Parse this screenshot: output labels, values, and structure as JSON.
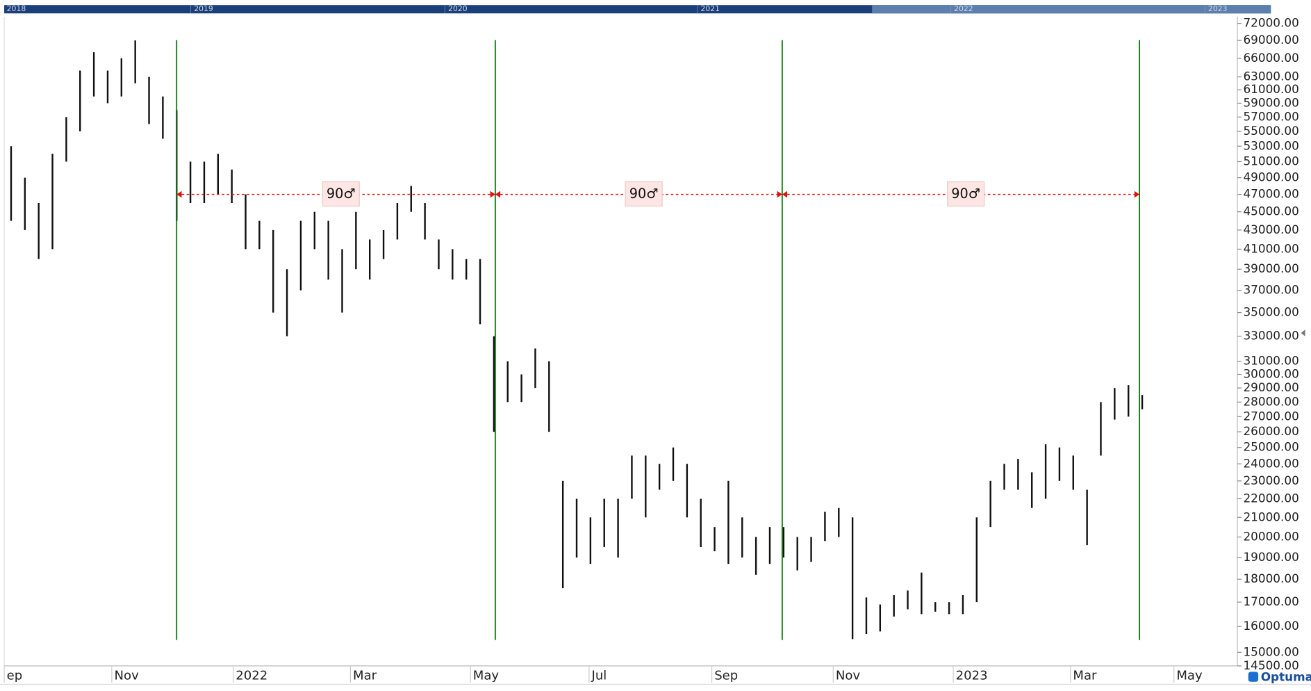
{
  "chart_data": {
    "type": "ohlc",
    "log_scale": true,
    "color": "#111111",
    "ylim": [
      14500,
      73200
    ],
    "yticks": [
      {
        "value": 72000,
        "label": "72000.00"
      },
      {
        "value": 69000,
        "label": "69000.00"
      },
      {
        "value": 66000,
        "label": "66000.00"
      },
      {
        "value": 63000,
        "label": "63000.00"
      },
      {
        "value": 61000,
        "label": "61000.00"
      },
      {
        "value": 59000,
        "label": "59000.00"
      },
      {
        "value": 57000,
        "label": "57000.00"
      },
      {
        "value": 55000,
        "label": "55000.00"
      },
      {
        "value": 53000,
        "label": "53000.00"
      },
      {
        "value": 51000,
        "label": "51000.00"
      },
      {
        "value": 49000,
        "label": "49000.00"
      },
      {
        "value": 47000,
        "label": "47000.00"
      },
      {
        "value": 45000,
        "label": "45000.00"
      },
      {
        "value": 43000,
        "label": "43000.00"
      },
      {
        "value": 41000,
        "label": "41000.00"
      },
      {
        "value": 39000,
        "label": "39000.00"
      },
      {
        "value": 37000,
        "label": "37000.00"
      },
      {
        "value": 35000,
        "label": "35000.00"
      },
      {
        "value": 33000,
        "label": "33000.00"
      },
      {
        "value": 31000,
        "label": "31000.00"
      },
      {
        "value": 30000,
        "label": "30000.00"
      },
      {
        "value": 29000,
        "label": "29000.00"
      },
      {
        "value": 28000,
        "label": "28000.00"
      },
      {
        "value": 27000,
        "label": "27000.00"
      },
      {
        "value": 26000,
        "label": "26000.00"
      },
      {
        "value": 25000,
        "label": "25000.00"
      },
      {
        "value": 24000,
        "label": "24000.00"
      },
      {
        "value": 23000,
        "label": "23000.00"
      },
      {
        "value": 22000,
        "label": "22000.00"
      },
      {
        "value": 21000,
        "label": "21000.00"
      },
      {
        "value": 20000,
        "label": "20000.00"
      },
      {
        "value": 19000,
        "label": "19000.00"
      },
      {
        "value": 18000,
        "label": "18000.00"
      },
      {
        "value": 17000,
        "label": "17000.00"
      },
      {
        "value": 16000,
        "label": "16000.00"
      },
      {
        "value": 15000,
        "label": "15000.00"
      },
      {
        "value": 14500,
        "label": "14500.00"
      }
    ],
    "xlim": [
      0,
      89.4
    ],
    "xticks": [
      {
        "value": 0,
        "label": "ep"
      },
      {
        "value": 7.8,
        "label": "Nov"
      },
      {
        "value": 16.6,
        "label": "2022"
      },
      {
        "value": 25.1,
        "label": "Mar"
      },
      {
        "value": 33.8,
        "label": "May"
      },
      {
        "value": 42.4,
        "label": "Jul"
      },
      {
        "value": 51.3,
        "label": "Sep"
      },
      {
        "value": 60.1,
        "label": "Nov"
      },
      {
        "value": 68.8,
        "label": "2023"
      },
      {
        "value": 77.3,
        "label": "Mar"
      },
      {
        "value": 84.8,
        "label": "May"
      }
    ],
    "high": [
      53000,
      49000,
      46000,
      52000,
      57000,
      64000,
      67000,
      64000,
      66000,
      69000,
      63000,
      60000,
      58000,
      51000,
      51000,
      52000,
      50000,
      47000,
      44000,
      43000,
      39000,
      44000,
      45000,
      44000,
      41000,
      45000,
      42000,
      43000,
      46000,
      48000,
      46000,
      42000,
      41000,
      40000,
      40000,
      33000,
      31000,
      30000,
      32000,
      31000,
      23000,
      22000,
      21000,
      22000,
      22000,
      24500,
      24500,
      24000,
      25000,
      24000,
      22000,
      20500,
      23000,
      21000,
      20000,
      20500,
      20500,
      20000,
      20000,
      21300,
      21500,
      21000,
      17200,
      16900,
      17300,
      17500,
      18300,
      17000,
      17000,
      17300,
      21000,
      23000,
      24000,
      24300,
      23500,
      25200,
      25000,
      24500,
      22500,
      28000,
      29000,
      29200,
      28500
    ],
    "low": [
      44000,
      43000,
      40000,
      41000,
      51000,
      55000,
      60000,
      59000,
      60000,
      62000,
      56000,
      54000,
      44000,
      46000,
      46000,
      47000,
      46000,
      41000,
      41000,
      35000,
      33000,
      37000,
      41000,
      38000,
      35000,
      39000,
      38000,
      40000,
      42000,
      45000,
      42000,
      39000,
      38000,
      38000,
      34000,
      26000,
      28000,
      28000,
      29000,
      26000,
      17600,
      19000,
      18700,
      19500,
      19000,
      22000,
      21000,
      22500,
      23000,
      21000,
      19500,
      19300,
      18700,
      19000,
      18200,
      18700,
      19000,
      18400,
      18800,
      19800,
      20000,
      15500,
      15700,
      15800,
      16400,
      16700,
      16500,
      16600,
      16500,
      16500,
      17000,
      20500,
      22500,
      22500,
      21500,
      22000,
      23000,
      22500,
      19600,
      24500,
      26800,
      27000,
      27500
    ],
    "cycle_lines": [
      12.5,
      35.6,
      56.4,
      82.3
    ],
    "cycle_level": 47000,
    "cycle_labels": [
      "90♂",
      "90♂",
      "90♂"
    ],
    "navigator_years": [
      "2018",
      "2019",
      "2020",
      "2021",
      "2022",
      "2023"
    ],
    "logo": "Optuma"
  }
}
